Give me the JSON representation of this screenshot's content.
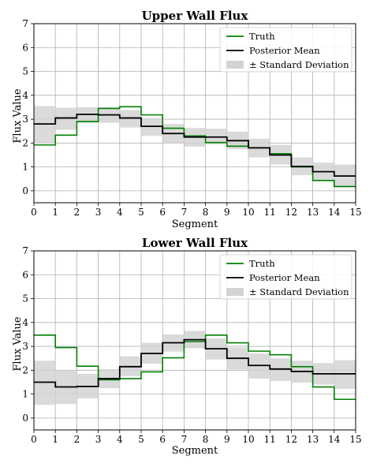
{
  "chart_data": [
    {
      "type": "line",
      "title": "Upper Wall Flux",
      "xlabel": "Segment",
      "ylabel": "Flux Value",
      "xlim": [
        0,
        15
      ],
      "ylim": [
        -0.5,
        7
      ],
      "xticks": [
        "0",
        "1",
        "2",
        "3",
        "4",
        "5",
        "6",
        "7",
        "8",
        "9",
        "10",
        "11",
        "12",
        "13",
        "14",
        "15"
      ],
      "yticks": [
        "0",
        "1",
        "2",
        "3",
        "4",
        "5",
        "6",
        "7"
      ],
      "grid": true,
      "legend_position": "top-right",
      "x_edges": [
        0,
        1,
        2,
        3,
        4,
        5,
        6,
        7,
        8,
        9,
        10,
        11,
        12,
        13,
        14,
        15
      ],
      "series": [
        {
          "name": "Truth",
          "color": "#008000",
          "values": [
            1.92,
            2.33,
            2.9,
            3.45,
            3.52,
            3.18,
            2.62,
            2.3,
            2.02,
            1.87,
            1.8,
            1.55,
            1.0,
            0.43,
            0.18
          ]
        },
        {
          "name": "Posterior Mean",
          "color": "#000000",
          "values": [
            2.8,
            3.05,
            3.2,
            3.18,
            3.05,
            2.7,
            2.4,
            2.25,
            2.25,
            2.1,
            1.8,
            1.5,
            1.02,
            0.8,
            0.62
          ]
        },
        {
          "name": "± Standard Deviation",
          "color": "#d3d3d3",
          "lower": [
            2.0,
            2.55,
            2.85,
            2.85,
            2.65,
            2.3,
            2.0,
            1.85,
            1.95,
            1.75,
            1.4,
            1.1,
            0.65,
            0.45,
            0.15
          ],
          "upper": [
            3.55,
            3.48,
            3.5,
            3.5,
            3.38,
            3.05,
            2.8,
            2.63,
            2.6,
            2.48,
            2.18,
            1.92,
            1.4,
            1.18,
            1.1
          ]
        }
      ]
    },
    {
      "type": "line",
      "title": "Lower Wall Flux",
      "xlabel": "Segment",
      "ylabel": "Flux Value",
      "xlim": [
        0,
        15
      ],
      "ylim": [
        -0.5,
        7
      ],
      "xticks": [
        "0",
        "1",
        "2",
        "3",
        "4",
        "5",
        "6",
        "7",
        "8",
        "9",
        "10",
        "11",
        "12",
        "13",
        "14",
        "15"
      ],
      "yticks": [
        "0",
        "1",
        "2",
        "3",
        "4",
        "5",
        "6",
        "7"
      ],
      "grid": true,
      "legend_position": "top-right",
      "x_edges": [
        0,
        1,
        2,
        3,
        4,
        5,
        6,
        7,
        8,
        9,
        10,
        11,
        12,
        13,
        14,
        15
      ],
      "series": [
        {
          "name": "Truth",
          "color": "#008000",
          "values": [
            3.47,
            2.95,
            2.17,
            1.6,
            1.65,
            1.93,
            2.52,
            3.2,
            3.47,
            3.15,
            2.8,
            2.65,
            2.15,
            1.3,
            0.78
          ]
        },
        {
          "name": "Posterior Mean",
          "color": "#000000",
          "values": [
            1.5,
            1.3,
            1.32,
            1.65,
            2.15,
            2.7,
            3.15,
            3.28,
            2.9,
            2.5,
            2.2,
            2.05,
            1.95,
            1.85,
            1.85
          ]
        },
        {
          "name": "± Standard Deviation",
          "color": "#d3d3d3",
          "lower": [
            0.55,
            0.58,
            0.82,
            1.25,
            1.75,
            2.28,
            2.78,
            2.92,
            2.45,
            2.03,
            1.65,
            1.55,
            1.48,
            1.4,
            1.22
          ],
          "upper": [
            2.4,
            2.0,
            1.85,
            2.05,
            2.58,
            3.15,
            3.5,
            3.65,
            3.33,
            2.95,
            2.7,
            2.5,
            2.4,
            2.3,
            2.42
          ]
        }
      ]
    }
  ]
}
